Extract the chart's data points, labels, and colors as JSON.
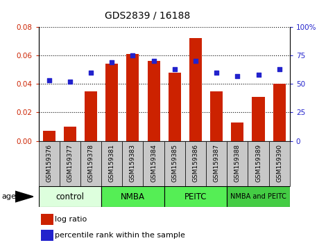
{
  "title": "GDS2839 / 16188",
  "samples": [
    "GSM159376",
    "GSM159377",
    "GSM159378",
    "GSM159381",
    "GSM159383",
    "GSM159384",
    "GSM159385",
    "GSM159386",
    "GSM159387",
    "GSM159388",
    "GSM159389",
    "GSM159390"
  ],
  "log_ratio": [
    0.007,
    0.01,
    0.035,
    0.054,
    0.061,
    0.056,
    0.048,
    0.072,
    0.035,
    0.013,
    0.031,
    0.04
  ],
  "percentile_rank": [
    53,
    52,
    60,
    69,
    75,
    70,
    63,
    70,
    60,
    57,
    58,
    63
  ],
  "bar_color": "#cc2200",
  "dot_color": "#2222cc",
  "groups": [
    {
      "label": "control",
      "start": 0,
      "end": 3,
      "color": "#ddffdd"
    },
    {
      "label": "NMBA",
      "start": 3,
      "end": 6,
      "color": "#55ee55"
    },
    {
      "label": "PEITC",
      "start": 6,
      "end": 9,
      "color": "#55ee55"
    },
    {
      "label": "NMBA and PEITC",
      "start": 9,
      "end": 12,
      "color": "#44cc44"
    }
  ],
  "ylim_left": [
    0,
    0.08
  ],
  "ylim_right": [
    0,
    100
  ],
  "yticks_left": [
    0,
    0.02,
    0.04,
    0.06,
    0.08
  ],
  "yticks_right": [
    0,
    25,
    50,
    75,
    100
  ],
  "ylabel_left_color": "#cc2200",
  "ylabel_right_color": "#2222cc",
  "agent_label": "agent",
  "legend_bar_label": "log ratio",
  "legend_dot_label": "percentile rank within the sample",
  "plot_bg_color": "#ffffff",
  "sample_box_color": "#c8c8c8",
  "grid_color": "#000000"
}
